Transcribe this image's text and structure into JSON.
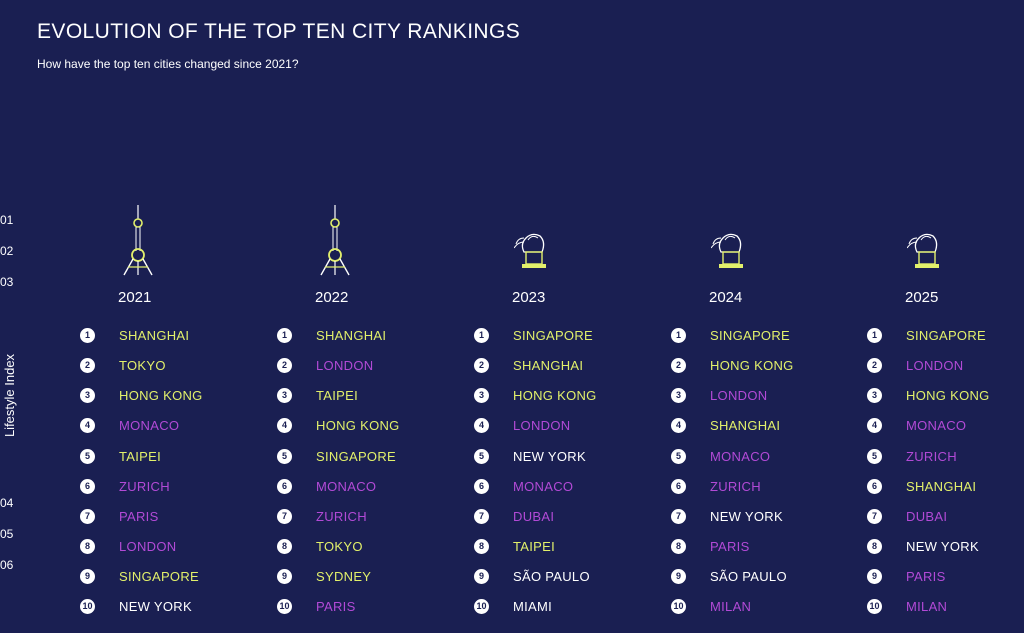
{
  "header": {
    "title": "EVOLUTION OF THE TOP TEN CITY RANKINGS",
    "subtitle": "How have the top ten cities changed since 2021?"
  },
  "side": {
    "axis_label": "Lifestyle Index",
    "codes": [
      "01",
      "02",
      "03",
      "04",
      "05",
      "06"
    ]
  },
  "colors": {
    "background": "#1a1f52",
    "yellow": "#e2f06b",
    "purple": "#b24ad6",
    "white": "#ffffff"
  },
  "columns": [
    {
      "year": "2021",
      "icon": "oriental-pearl-tower-icon",
      "cities": [
        {
          "rank": "1",
          "name": "SHANGHAI",
          "color": "yellow"
        },
        {
          "rank": "2",
          "name": "TOKYO",
          "color": "yellow"
        },
        {
          "rank": "3",
          "name": "HONG KONG",
          "color": "yellow"
        },
        {
          "rank": "4",
          "name": "MONACO",
          "color": "purple"
        },
        {
          "rank": "5",
          "name": "TAIPEI",
          "color": "yellow"
        },
        {
          "rank": "6",
          "name": "ZURICH",
          "color": "purple"
        },
        {
          "rank": "7",
          "name": "PARIS",
          "color": "purple"
        },
        {
          "rank": "8",
          "name": "LONDON",
          "color": "purple"
        },
        {
          "rank": "9",
          "name": "SINGAPORE",
          "color": "yellow"
        },
        {
          "rank": "10",
          "name": "NEW YORK",
          "color": "white"
        }
      ]
    },
    {
      "year": "2022",
      "icon": "oriental-pearl-tower-icon",
      "cities": [
        {
          "rank": "1",
          "name": "SHANGHAI",
          "color": "yellow"
        },
        {
          "rank": "2",
          "name": "LONDON",
          "color": "purple"
        },
        {
          "rank": "3",
          "name": "TAIPEI",
          "color": "yellow"
        },
        {
          "rank": "4",
          "name": "HONG KONG",
          "color": "yellow"
        },
        {
          "rank": "5",
          "name": "SINGAPORE",
          "color": "yellow"
        },
        {
          "rank": "6",
          "name": "MONACO",
          "color": "purple"
        },
        {
          "rank": "7",
          "name": "ZURICH",
          "color": "purple"
        },
        {
          "rank": "8",
          "name": "TOKYO",
          "color": "yellow"
        },
        {
          "rank": "9",
          "name": "SYDNEY",
          "color": "yellow"
        },
        {
          "rank": "10",
          "name": "PARIS",
          "color": "purple"
        }
      ]
    },
    {
      "year": "2023",
      "icon": "merlion-icon",
      "cities": [
        {
          "rank": "1",
          "name": "SINGAPORE",
          "color": "yellow"
        },
        {
          "rank": "2",
          "name": "SHANGHAI",
          "color": "yellow"
        },
        {
          "rank": "3",
          "name": "HONG KONG",
          "color": "yellow"
        },
        {
          "rank": "4",
          "name": "LONDON",
          "color": "purple"
        },
        {
          "rank": "5",
          "name": "NEW YORK",
          "color": "white"
        },
        {
          "rank": "6",
          "name": "MONACO",
          "color": "purple"
        },
        {
          "rank": "7",
          "name": "DUBAI",
          "color": "purple"
        },
        {
          "rank": "8",
          "name": "TAIPEI",
          "color": "yellow"
        },
        {
          "rank": "9",
          "name": "SÃO PAULO",
          "color": "white"
        },
        {
          "rank": "10",
          "name": "MIAMI",
          "color": "white"
        }
      ]
    },
    {
      "year": "2024",
      "icon": "merlion-icon",
      "cities": [
        {
          "rank": "1",
          "name": "SINGAPORE",
          "color": "yellow"
        },
        {
          "rank": "2",
          "name": "HONG KONG",
          "color": "yellow"
        },
        {
          "rank": "3",
          "name": "LONDON",
          "color": "purple"
        },
        {
          "rank": "4",
          "name": "SHANGHAI",
          "color": "yellow"
        },
        {
          "rank": "5",
          "name": "MONACO",
          "color": "purple"
        },
        {
          "rank": "6",
          "name": "ZURICH",
          "color": "purple"
        },
        {
          "rank": "7",
          "name": "NEW YORK",
          "color": "white"
        },
        {
          "rank": "8",
          "name": "PARIS",
          "color": "purple"
        },
        {
          "rank": "9",
          "name": "SÃO PAULO",
          "color": "white"
        },
        {
          "rank": "10",
          "name": "MILAN",
          "color": "purple"
        }
      ]
    },
    {
      "year": "2025",
      "icon": "merlion-icon",
      "cities": [
        {
          "rank": "1",
          "name": "SINGAPORE",
          "color": "yellow"
        },
        {
          "rank": "2",
          "name": "LONDON",
          "color": "purple"
        },
        {
          "rank": "3",
          "name": "HONG KONG",
          "color": "yellow"
        },
        {
          "rank": "4",
          "name": "MONACO",
          "color": "purple"
        },
        {
          "rank": "5",
          "name": "ZURICH",
          "color": "purple"
        },
        {
          "rank": "6",
          "name": "SHANGHAI",
          "color": "yellow"
        },
        {
          "rank": "7",
          "name": "DUBAI",
          "color": "purple"
        },
        {
          "rank": "8",
          "name": "NEW YORK",
          "color": "white"
        },
        {
          "rank": "9",
          "name": "PARIS",
          "color": "purple"
        },
        {
          "rank": "10",
          "name": "MILAN",
          "color": "purple"
        }
      ]
    }
  ]
}
